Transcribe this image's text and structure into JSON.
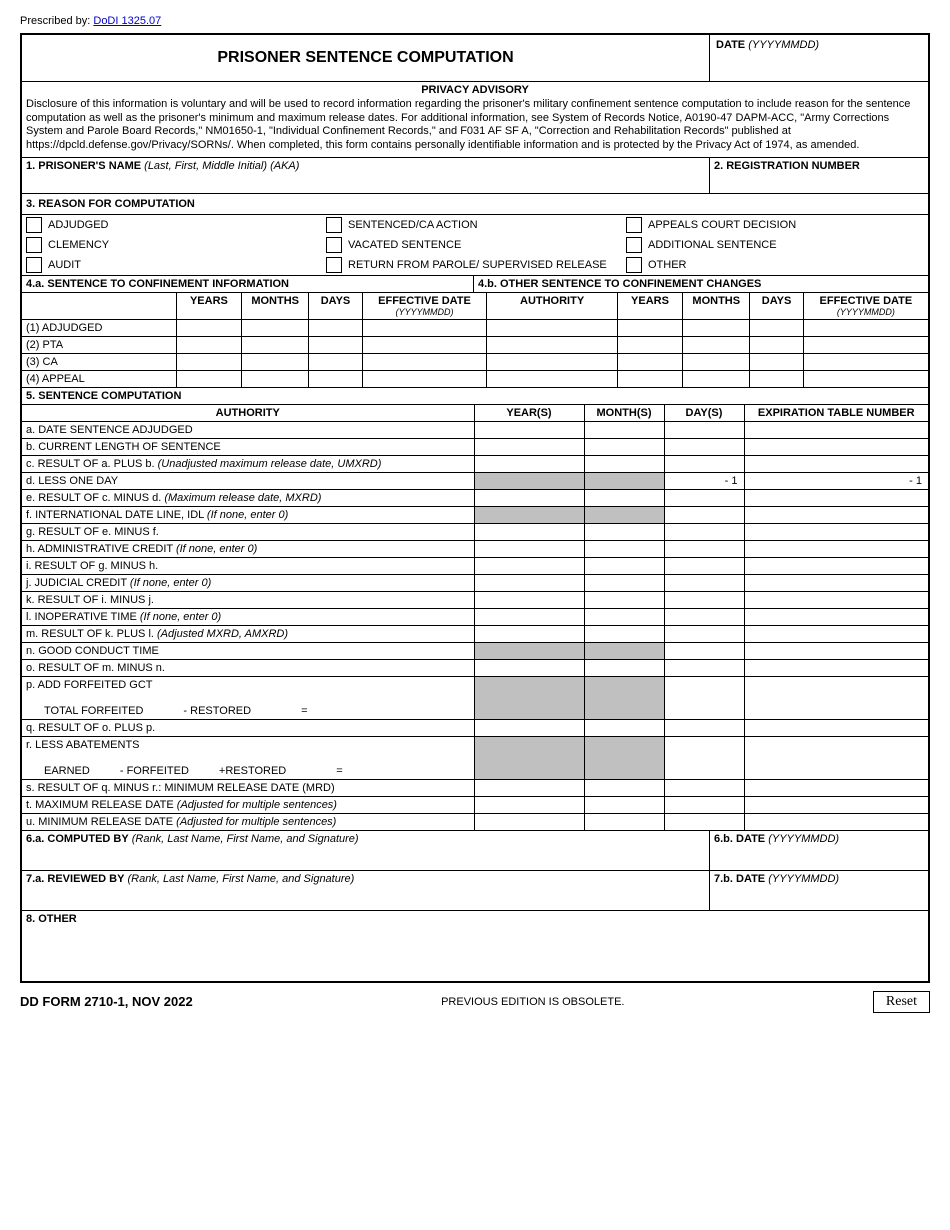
{
  "prescribed": {
    "label": "Prescribed by:",
    "link": "DoDI 1325.07"
  },
  "title": "PRISONER SENTENCE COMPUTATION",
  "date_label": "DATE",
  "date_format": "(YYYYMMDD)",
  "advisory": {
    "head": "PRIVACY ADVISORY",
    "text": "Disclosure of this information is voluntary and will be used to record information regarding the prisoner's military confinement sentence computation to include reason for the sentence computation as well as the prisoner's minimum and maximum release dates. For additional information, see System of Records Notice, A0190-47 DAPM-ACC, \"Army Corrections System and Parole Board Records,\" NM01650-1, \"Individual Confinement Records,\" and F031 AF SF A, \"Correction and Rehabilitation Records\" published at https://dpcld.defense.gov/Privacy/SORNs/.  When completed, this form contains personally identifiable information and is protected by the Privacy Act of 1974, as amended."
  },
  "field1": {
    "bold": "1. PRISONER'S  NAME",
    "italic": "(Last, First, Middle Initial) (AKA)"
  },
  "field2": "2. REGISTRATION NUMBER",
  "section3": {
    "head": "3. REASON FOR COMPUTATION",
    "items": [
      [
        "ADJUDGED",
        "SENTENCED/CA ACTION",
        "APPEALS COURT DECISION"
      ],
      [
        "CLEMENCY",
        "VACATED SENTENCE",
        "ADDITIONAL SENTENCE"
      ],
      [
        "AUDIT",
        "RETURN FROM PAROLE/ SUPERVISED RELEASE",
        "OTHER"
      ]
    ]
  },
  "sec4": {
    "left": "4.a. SENTENCE TO CONFINEMENT INFORMATION",
    "right": "4.b. OTHER SENTENCE TO CONFINEMENT CHANGES",
    "cols": [
      "",
      "YEARS",
      "MONTHS",
      "DAYS",
      "EFFECTIVE DATE",
      "AUTHORITY",
      "YEARS",
      "MONTHS",
      "DAYS",
      "EFFECTIVE DATE"
    ],
    "eff_sub": "(YYYYMMDD)",
    "rows": [
      "(1) ADJUDGED",
      "(2) PTA",
      "(3) CA",
      "(4) APPEAL"
    ]
  },
  "sec5": {
    "head": "5. SENTENCE COMPUTATION",
    "cols": [
      "AUTHORITY",
      "YEAR(S)",
      "MONTH(S)",
      "DAY(S)",
      "EXPIRATION TABLE NUMBER"
    ],
    "rows": [
      {
        "label": "a. DATE SENTENCE ADJUDGED"
      },
      {
        "label": "b. CURRENT LENGTH OF SENTENCE"
      },
      {
        "label_plain": "c. RESULT OF a. PLUS b. ",
        "label_italic": "(Unadjusted maximum release date, UMXRD)"
      },
      {
        "label": "d. LESS ONE DAY",
        "shaded_yr_mo": true,
        "day_val": "- 1",
        "exp_val": "- 1"
      },
      {
        "label_plain": "e. RESULT OF c. MINUS d. ",
        "label_italic": "(Maximum release date, MXRD)"
      },
      {
        "label_plain": "f. INTERNATIONAL DATE LINE, IDL ",
        "label_italic": "(If none, enter 0)",
        "shaded_yr_mo": true
      },
      {
        "label": "g. RESULT OF e. MINUS f."
      },
      {
        "label_plain": "h. ADMINISTRATIVE CREDIT ",
        "label_italic": "(If none, enter 0)"
      },
      {
        "label": "i. RESULT OF g. MINUS h."
      },
      {
        "label_plain": "j. JUDICIAL CREDIT ",
        "label_italic": "(If none, enter 0)"
      },
      {
        "label": "k. RESULT OF i. MINUS j."
      },
      {
        "label_plain": "l. INOPERATIVE TIME ",
        "label_italic": "(If none, enter 0)"
      },
      {
        "label_plain": "m. RESULT OF k. PLUS l. ",
        "label_italic": "(Adjusted MXRD, AMXRD)"
      },
      {
        "label": "n. GOOD CONDUCT TIME",
        "shaded_yr_mo": true
      },
      {
        "label": "o. RESULT OF m. MINUS n."
      }
    ],
    "row_p": {
      "l1": "p. ADD FORFEITED GCT",
      "l2a": "TOTAL FORFEITED",
      "l2b": "- RESTORED",
      "l2c": "="
    },
    "row_q": {
      "label": "q. RESULT OF o. PLUS p."
    },
    "row_r": {
      "l1": "r. LESS ABATEMENTS",
      "l2a": "EARNED",
      "l2b": "- FORFEITED",
      "l2c": "+RESTORED",
      "l2d": "="
    },
    "rows2": [
      {
        "label": "s. RESULT OF q. MINUS r.:   MINIMUM RELEASE DATE (MRD)"
      },
      {
        "label_plain": "t. MAXIMUM RELEASE DATE ",
        "label_italic": "(Adjusted for multiple sentences)"
      },
      {
        "label_plain": "u. MINIMUM RELEASE DATE ",
        "label_italic": "(Adjusted for multiple sentences)"
      }
    ]
  },
  "sig6a": {
    "bold": "6.a. COMPUTED BY",
    "italic": "(Rank, Last Name, First Name, and Signature)"
  },
  "sig6b": {
    "bold": "6.b. DATE",
    "italic": "(YYYYMMDD)"
  },
  "sig7a": {
    "bold": "7.a. REVIEWED BY",
    "italic": "(Rank, Last Name, First Name, and Signature)"
  },
  "sig7b": {
    "bold": "7.b. DATE",
    "italic": "(YYYYMMDD)"
  },
  "other": "8. OTHER",
  "footer": {
    "l": "DD FORM 2710-1, NOV 2022",
    "c": "PREVIOUS EDITION IS OBSOLETE.",
    "btn": "Reset"
  }
}
